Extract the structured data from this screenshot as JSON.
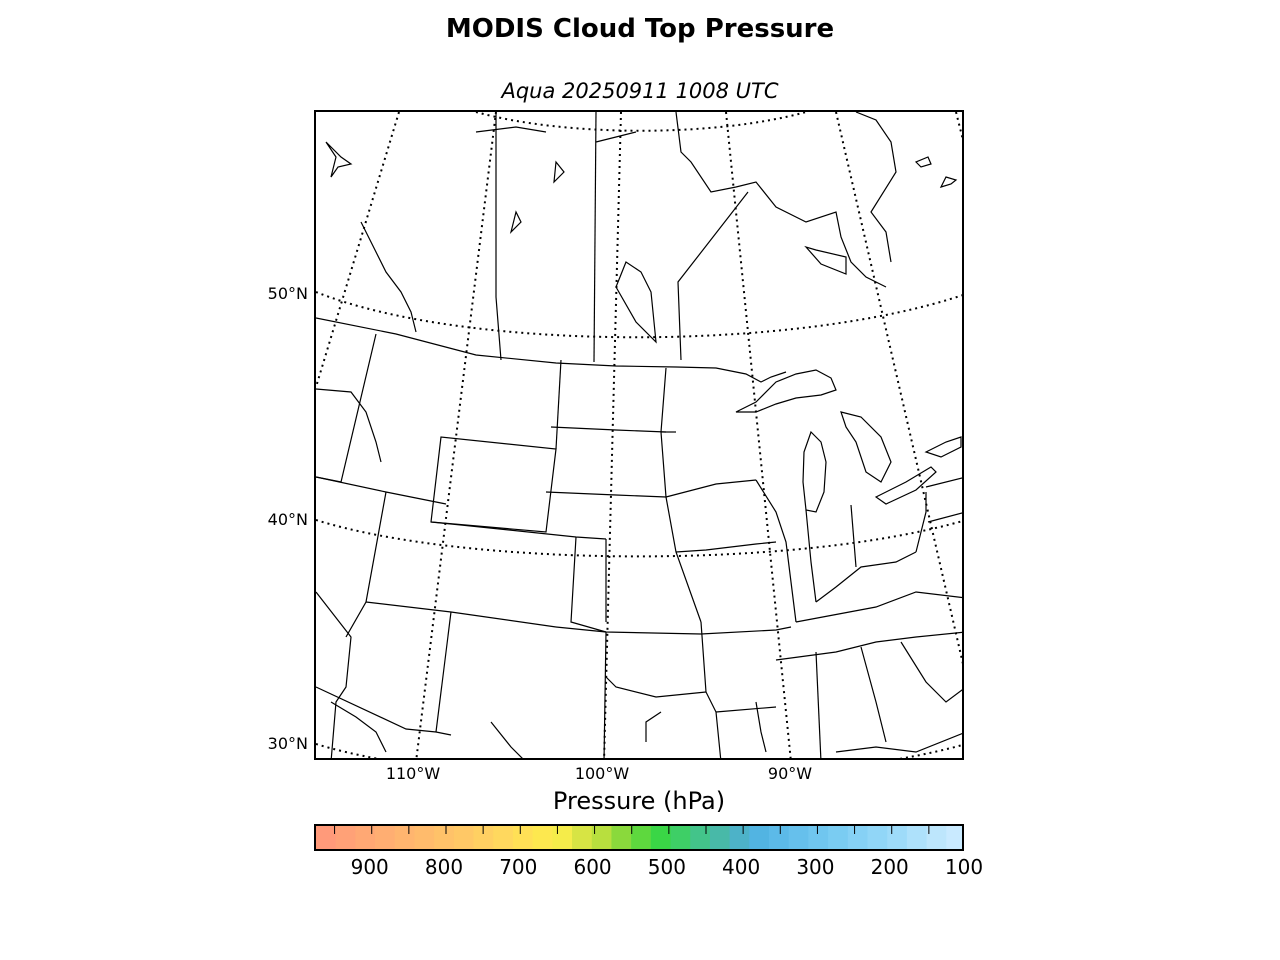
{
  "title": "MODIS Cloud Top Pressure",
  "subtitle": "Aqua 20250911 1008 UTC",
  "map": {
    "projection": "lambert-conformal",
    "lat_labels": [
      "50°N",
      "40°N",
      "30°N"
    ],
    "lon_labels": [
      "110°W",
      "100°W",
      "90°W"
    ],
    "graticule": "dotted",
    "coastline_color": "#000000"
  },
  "colorbar": {
    "label": "Pressure (hPa)",
    "range": [
      975,
      100
    ],
    "ticks": [
      "900",
      "800",
      "700",
      "600",
      "500",
      "400",
      "300",
      "200",
      "100"
    ],
    "tick_values": [
      900,
      800,
      700,
      600,
      500,
      400,
      300,
      200,
      100
    ],
    "colors": [
      "#ff9a7a",
      "#ffa177",
      "#ffa874",
      "#ffae72",
      "#ffb56f",
      "#ffbb6c",
      "#ffc269",
      "#ffc866",
      "#ffd062",
      "#ffd85e",
      "#ffe056",
      "#fde84f",
      "#f5ec4a",
      "#d7e444",
      "#b8df3e",
      "#8ad93c",
      "#5ed83e",
      "#3ad646",
      "#3ecf66",
      "#43c48a",
      "#48b9a8",
      "#4db2c8",
      "#52b4e2",
      "#5cbae8",
      "#66c0ec",
      "#70c6ef",
      "#7accf2",
      "#86d1f5",
      "#91d6f7",
      "#9edbf9",
      "#aee1fb",
      "#bde6fc",
      "#c9eaff"
    ]
  }
}
